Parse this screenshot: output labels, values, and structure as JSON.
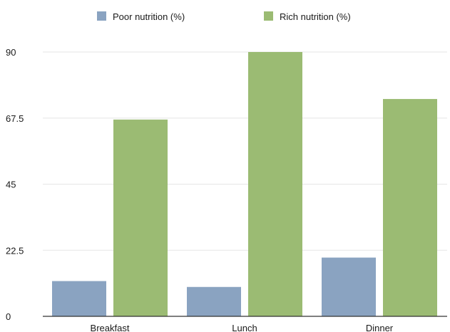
{
  "chart_data": {
    "type": "bar",
    "title": "",
    "xlabel": "",
    "ylabel": "",
    "categories": [
      "Breakfast",
      "Lunch",
      "Dinner"
    ],
    "series": [
      {
        "name": "Poor nutrition (%)",
        "values": [
          12,
          10,
          20
        ],
        "color": "#8aa3c1"
      },
      {
        "name": "Rich nutrition (%)",
        "values": [
          67,
          90,
          74
        ],
        "color": "#9bbb73"
      }
    ],
    "ylim": [
      0,
      90
    ],
    "yticks": [
      "0",
      "22.5",
      "45",
      "67.5",
      "90"
    ],
    "grid": true,
    "legend_position": "top-center"
  }
}
